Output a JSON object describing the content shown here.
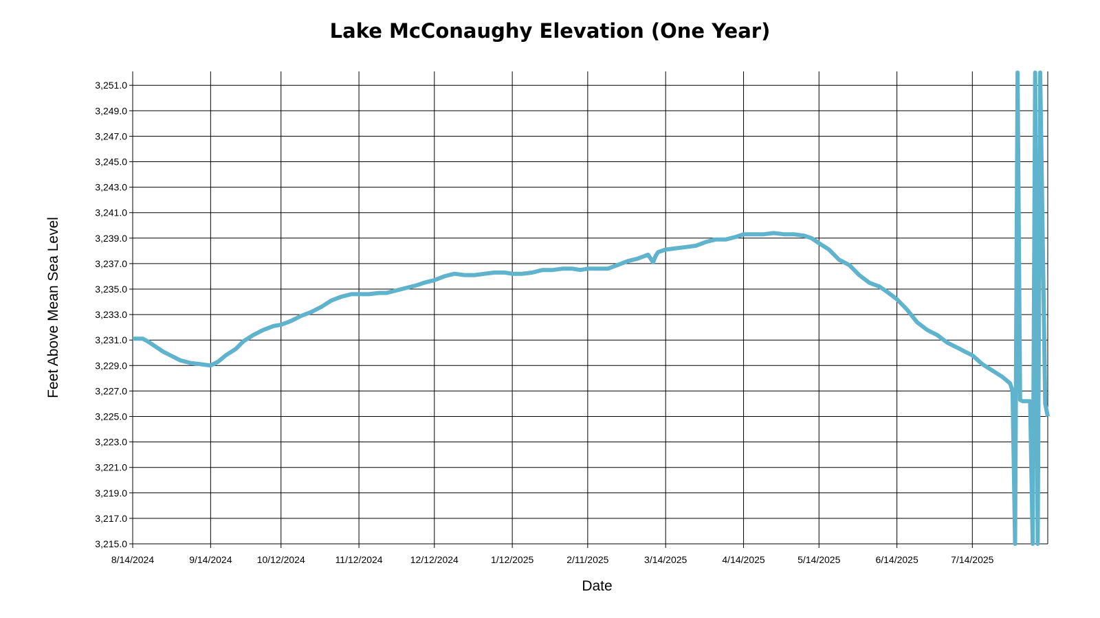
{
  "chart_data": {
    "type": "line",
    "title": "Lake McConaughy Elevation (One Year)",
    "xlabel": "Date",
    "ylabel": "Feet Above Mean Sea Level",
    "xlim": [
      "2024-08-14",
      "2025-08-13"
    ],
    "ylim": [
      3215.0,
      3252.0
    ],
    "grid": true,
    "line_color": "#5fb3cc",
    "x_ticks": [
      "8/14/2024",
      "9/14/2024",
      "10/12/2024",
      "11/12/2024",
      "12/12/2024",
      "1/12/2025",
      "2/11/2025",
      "3/14/2025",
      "4/14/2025",
      "5/14/2025",
      "6/14/2025",
      "7/14/2025"
    ],
    "y_ticks": [
      "3,215.0",
      "3,217.0",
      "3,219.0",
      "3,221.0",
      "3,223.0",
      "3,225.0",
      "3,227.0",
      "3,229.0",
      "3,231.0",
      "3,233.0",
      "3,235.0",
      "3,237.0",
      "3,239.0",
      "3,241.0",
      "3,243.0",
      "3,245.0",
      "3,247.0",
      "3,249.0",
      "3,251.0"
    ],
    "series": [
      {
        "x": [
          "2024-08-14",
          "2024-08-18",
          "2024-08-20",
          "2024-08-23",
          "2024-08-26",
          "2024-08-29",
          "2024-09-02",
          "2024-09-06",
          "2024-09-10",
          "2024-09-14",
          "2024-09-17",
          "2024-09-20",
          "2024-09-24",
          "2024-09-27",
          "2024-10-01",
          "2024-10-05",
          "2024-10-09",
          "2024-10-12",
          "2024-10-16",
          "2024-10-20",
          "2024-10-24",
          "2024-10-28",
          "2024-11-01",
          "2024-11-05",
          "2024-11-09",
          "2024-11-12",
          "2024-11-16",
          "2024-11-20",
          "2024-11-23",
          "2024-11-27",
          "2024-12-01",
          "2024-12-05",
          "2024-12-08",
          "2024-12-12",
          "2024-12-16",
          "2024-12-20",
          "2024-12-24",
          "2024-12-28",
          "2025-01-01",
          "2025-01-05",
          "2025-01-09",
          "2025-01-12",
          "2025-01-16",
          "2025-01-20",
          "2025-01-24",
          "2025-01-28",
          "2025-02-01",
          "2025-02-05",
          "2025-02-08",
          "2025-02-11",
          "2025-02-15",
          "2025-02-19",
          "2025-02-23",
          "2025-02-27",
          "2025-03-03",
          "2025-03-07",
          "2025-03-09",
          "2025-03-10",
          "2025-03-11",
          "2025-03-14",
          "2025-03-18",
          "2025-03-22",
          "2025-03-26",
          "2025-03-30",
          "2025-04-03",
          "2025-04-07",
          "2025-04-11",
          "2025-04-14",
          "2025-04-18",
          "2025-04-22",
          "2025-04-26",
          "2025-04-30",
          "2025-05-04",
          "2025-05-08",
          "2025-05-11",
          "2025-05-14",
          "2025-05-18",
          "2025-05-22",
          "2025-05-26",
          "2025-05-30",
          "2025-06-03",
          "2025-06-07",
          "2025-06-10",
          "2025-06-14",
          "2025-06-18",
          "2025-06-22",
          "2025-06-26",
          "2025-06-30",
          "2025-07-04",
          "2025-07-08",
          "2025-07-11",
          "2025-07-14",
          "2025-07-18",
          "2025-07-22",
          "2025-07-26",
          "2025-07-29",
          "2025-07-30",
          "2025-07-31",
          "2025-08-01",
          "2025-08-02",
          "2025-08-03",
          "2025-08-05",
          "2025-08-06",
          "2025-08-07",
          "2025-08-08",
          "2025-08-09",
          "2025-08-10",
          "2025-08-12",
          "2025-08-13"
        ],
        "values": [
          3231.1,
          3231.1,
          3230.9,
          3230.5,
          3230.1,
          3229.8,
          3229.4,
          3229.2,
          3229.1,
          3229.0,
          3229.3,
          3229.8,
          3230.3,
          3230.9,
          3231.4,
          3231.8,
          3232.1,
          3232.2,
          3232.5,
          3232.9,
          3233.2,
          3233.6,
          3234.1,
          3234.4,
          3234.6,
          3234.6,
          3234.6,
          3234.7,
          3234.7,
          3234.9,
          3235.1,
          3235.3,
          3235.5,
          3235.7,
          3236.0,
          3236.2,
          3236.1,
          3236.1,
          3236.2,
          3236.3,
          3236.3,
          3236.2,
          3236.2,
          3236.3,
          3236.5,
          3236.5,
          3236.6,
          3236.6,
          3236.5,
          3236.6,
          3236.6,
          3236.6,
          3236.9,
          3237.2,
          3237.4,
          3237.7,
          3237.1,
          3237.6,
          3237.9,
          3238.1,
          3238.2,
          3238.3,
          3238.4,
          3238.7,
          3238.9,
          3238.9,
          3239.1,
          3239.3,
          3239.3,
          3239.3,
          3239.4,
          3239.3,
          3239.3,
          3239.2,
          3239.0,
          3238.6,
          3238.1,
          3237.3,
          3236.9,
          3236.1,
          3235.5,
          3235.2,
          3234.8,
          3234.2,
          3233.4,
          3232.4,
          3231.8,
          3231.4,
          3230.8,
          3230.4,
          3230.1,
          3229.8,
          3229.1,
          3228.6,
          3228.1,
          3227.6,
          3227.0,
          3215.0,
          3252.0,
          3226.3,
          3226.2,
          3226.2,
          3226.2,
          3215.0,
          3252.0,
          3215.0,
          3252.0,
          3226.0,
          3225.0
        ]
      }
    ]
  }
}
